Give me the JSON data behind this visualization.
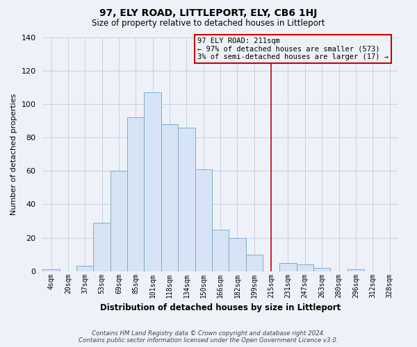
{
  "title": "97, ELY ROAD, LITTLEPORT, ELY, CB6 1HJ",
  "subtitle": "Size of property relative to detached houses in Littleport",
  "xlabel": "Distribution of detached houses by size in Littleport",
  "ylabel": "Number of detached properties",
  "bar_labels": [
    "4sqm",
    "20sqm",
    "37sqm",
    "53sqm",
    "69sqm",
    "85sqm",
    "101sqm",
    "118sqm",
    "134sqm",
    "150sqm",
    "166sqm",
    "182sqm",
    "199sqm",
    "215sqm",
    "231sqm",
    "247sqm",
    "263sqm",
    "280sqm",
    "296sqm",
    "312sqm",
    "328sqm"
  ],
  "bar_values": [
    1,
    0,
    3,
    29,
    60,
    92,
    107,
    88,
    86,
    61,
    25,
    20,
    10,
    0,
    5,
    4,
    2,
    0,
    1,
    0,
    0
  ],
  "bar_color": "#d6e4f5",
  "bar_edgecolor": "#7aadd4",
  "vline_color": "#cc0000",
  "annotation_title": "97 ELY ROAD: 211sqm",
  "annotation_line1": "← 97% of detached houses are smaller (573)",
  "annotation_line2": "3% of semi-detached houses are larger (17) →",
  "ylim": [
    0,
    140
  ],
  "yticks": [
    0,
    20,
    40,
    60,
    80,
    100,
    120,
    140
  ],
  "footnote1": "Contains HM Land Registry data © Crown copyright and database right 2024.",
  "footnote2": "Contains public sector information licensed under the Open Government Licence v3.0.",
  "bg_color": "#eef2f8",
  "grid_color": "#c8d4e8"
}
